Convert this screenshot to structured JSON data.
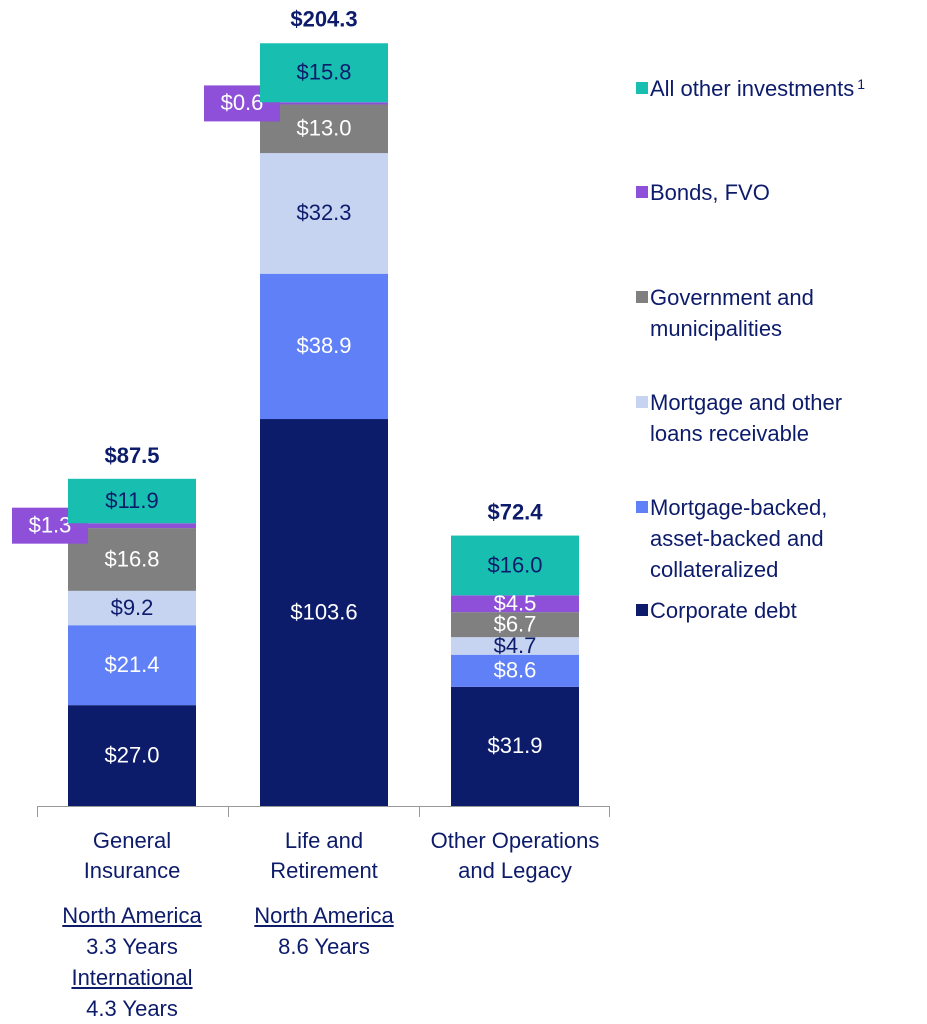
{
  "chart_data": {
    "type": "stacked_bar",
    "categories": [
      "General Insurance",
      "Life and Retirement",
      "Other Operations and Legacy"
    ],
    "ylim": [
      0,
      210
    ],
    "totals": {
      "values": [
        87.5,
        204.3,
        72.4
      ],
      "value_labels": [
        "$87.5",
        "$204.3",
        "$72.4"
      ],
      "color": "#0d1b6b"
    },
    "series": [
      {
        "name": "Corporate debt",
        "color": "#0d1b6b",
        "label_color": "#ffffff",
        "values": [
          27.0,
          103.6,
          31.9
        ],
        "value_labels": [
          "$27.0",
          "$103.6",
          "$31.9"
        ]
      },
      {
        "name": "Mortgage-backed, asset-backed and collateralized",
        "color": "#5f80f6",
        "label_color": "#ffffff",
        "values": [
          21.4,
          38.9,
          8.6
        ],
        "value_labels": [
          "$21.4",
          "$38.9",
          "$8.6"
        ]
      },
      {
        "name": "Mortgage and other loans receivable",
        "color": "#c6d4f2",
        "label_color": "#0d1b6b",
        "values": [
          9.2,
          32.3,
          4.7
        ],
        "value_labels": [
          "$9.2",
          "$32.3",
          "$4.7"
        ]
      },
      {
        "name": "Government and municipalities",
        "color": "#808080",
        "label_color": "#ffffff",
        "values": [
          16.8,
          13.0,
          6.7
        ],
        "value_labels": [
          "$16.8",
          "$13.0",
          "$6.7"
        ]
      },
      {
        "name": "Bonds, FVO",
        "color": "#8e50d8",
        "label_color": "#ffffff",
        "values": [
          1.3,
          0.6,
          4.5
        ],
        "value_labels": [
          "$1.3",
          "$0.6",
          "$4.5"
        ],
        "label_outside": [
          true,
          true,
          false
        ]
      },
      {
        "name": "All other investments",
        "note": "1",
        "color": "#18bfb1",
        "label_color": "#0d1b6b",
        "values": [
          11.9,
          15.8,
          16.0
        ],
        "value_labels": [
          "$11.9",
          "$15.8",
          "$16.0"
        ]
      }
    ],
    "durations": [
      [
        {
          "region": "North America",
          "years": "3.3 Years"
        },
        {
          "region": "International",
          "years": "4.3 Years"
        }
      ],
      [
        {
          "region": "North America",
          "years": "8.6 Years"
        }
      ],
      []
    ]
  }
}
